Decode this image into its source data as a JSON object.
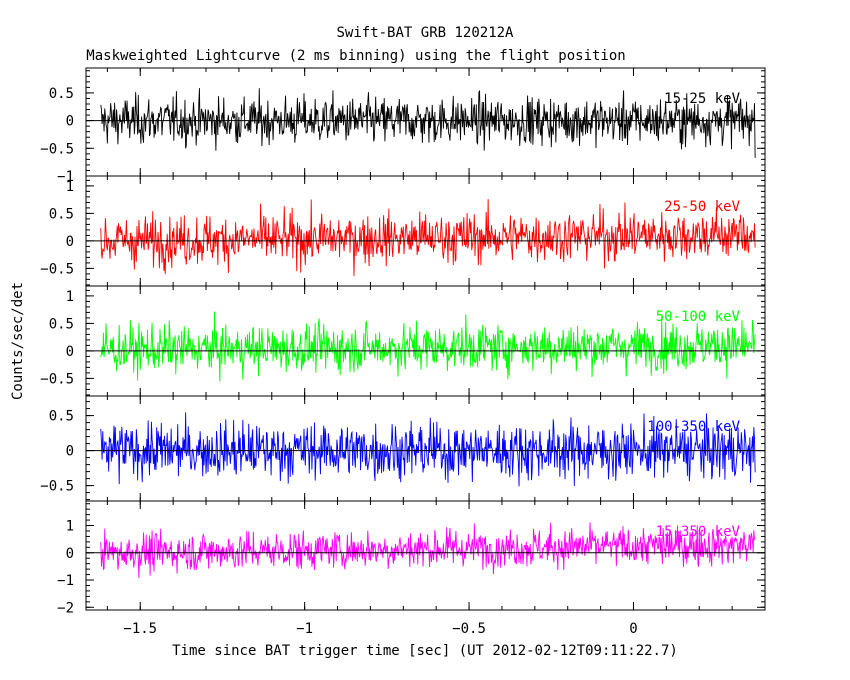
{
  "title": "Swift-BAT GRB 120212A",
  "subtitle": "Maskweighted Lightcurve (2 ms binning) using the flight position",
  "chart_data": {
    "type": "line",
    "xlabel": "Time since BAT trigger time [sec] (UT 2012-02-12T09:11:22.7)",
    "ylabel": "Counts/sec/det",
    "xlim": [
      -1.665,
      0.4
    ],
    "xticks": [
      -1.5,
      -1,
      -0.5,
      0
    ],
    "xtick_labels": [
      "−1.5",
      "−1",
      "−0.5",
      "0"
    ],
    "grid": false,
    "x_start": -1.62,
    "x_end": 0.37,
    "bin_width": 0.002,
    "panels": [
      {
        "name": "15-25 keV",
        "color": "#000000",
        "ylim": [
          -1.0,
          0.95
        ],
        "yticks": [
          -1,
          -0.5,
          0,
          0.5
        ],
        "ytick_labels": [
          "−1",
          "−0.5",
          "0",
          "0.5"
        ],
        "noise_amplitude": 0.3,
        "trend": [
          0.0,
          0.0
        ]
      },
      {
        "name": "25-50 keV",
        "color": "#ff0000",
        "ylim": [
          -0.82,
          1.18
        ],
        "yticks": [
          -0.5,
          0,
          0.5,
          1
        ],
        "ytick_labels": [
          "−0.5",
          "0",
          "0.5",
          "1"
        ],
        "noise_amplitude": 0.32,
        "trend": [
          0.0,
          0.12
        ]
      },
      {
        "name": "50-100 keV",
        "color": "#00ff00",
        "ylim": [
          -0.82,
          1.18
        ],
        "yticks": [
          -0.5,
          0,
          0.5,
          1
        ],
        "ytick_labels": [
          "−0.5",
          "0",
          "0.5",
          "1"
        ],
        "noise_amplitude": 0.3,
        "trend": [
          0.02,
          0.1
        ]
      },
      {
        "name": "100-350 keV",
        "color": "#0000ff",
        "ylim": [
          -0.72,
          0.78
        ],
        "yticks": [
          -0.5,
          0,
          0.5
        ],
        "ytick_labels": [
          "−0.5",
          "0",
          "0.5"
        ],
        "noise_amplitude": 0.28,
        "trend": [
          0.0,
          0.0
        ]
      },
      {
        "name": "15-350 keV",
        "color": "#ff00ff",
        "ylim": [
          -2.1,
          1.9
        ],
        "yticks": [
          -2,
          -1,
          0,
          1
        ],
        "ytick_labels": [
          "−2",
          "−1",
          "0",
          "1"
        ],
        "noise_amplitude": 0.5,
        "trend": [
          0.0,
          0.3
        ]
      }
    ]
  }
}
